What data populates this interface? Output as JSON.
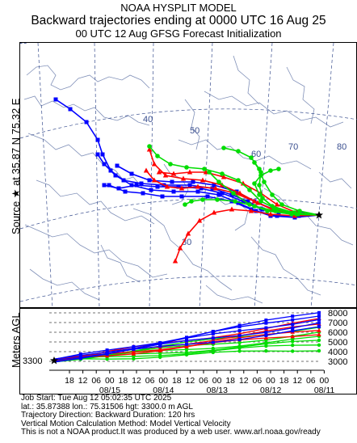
{
  "header": {
    "line1": "NOAA HYSPLIT MODEL",
    "line2": "Backward trajectories ending at 0000 UTC 16 Aug 25",
    "line3": "00 UTC 12 Aug    GFSG  Forecast Initialization"
  },
  "source_label": "Source ★ at   35.87 N   75.32 E",
  "map": {
    "lat_labels": [
      "30",
      "40",
      "50"
    ],
    "lon_labels": [
      "10",
      "60",
      "70",
      "80"
    ],
    "source_marker": "source-star-icon",
    "colors": {
      "red": "#ff0000",
      "blue": "#0000ff",
      "green": "#00dd00",
      "map_lines": "#8090b8",
      "grid": "#3a4f8f"
    }
  },
  "vertical": {
    "ylabel": "Meters AGL",
    "start_label": "3300",
    "y_ticks": [
      "8000",
      "7000",
      "6000",
      "5000",
      "4000",
      "3000"
    ],
    "hour_labels": [
      "18",
      "12",
      "06",
      "00",
      "18",
      "12",
      "06",
      "00",
      "18",
      "12",
      "06",
      "00",
      "18",
      "12",
      "06",
      "00",
      "18",
      "12",
      "06",
      "00"
    ],
    "date_labels": [
      "08/15",
      "08/14",
      "08/13",
      "08/12",
      "08/11"
    ]
  },
  "info": {
    "line1": "Job Start: Tue Aug 12 05:02:35 UTC 2025",
    "line2": "lat.: 35.87388   lon.: 75.31506   hgt: 3300.0 m AGL",
    "line3": "Trajectory Direction: Backward        Duration: 120 hrs",
    "line4": "Vertical Motion Calculation Method: Model Vertical Velocity",
    "line5": "This is not a NOAA product.It was produced by a web user. www.arl.noaa.gov/ready"
  }
}
